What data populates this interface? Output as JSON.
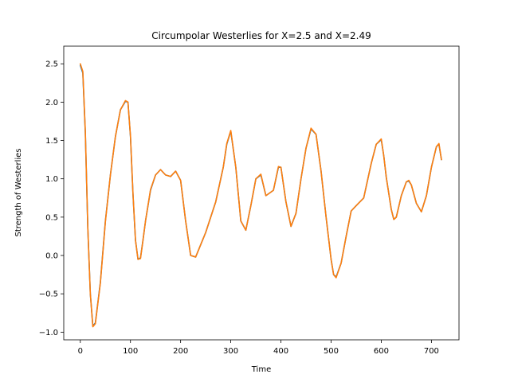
{
  "chart_data": {
    "type": "line",
    "title": "Circumpolar Westerlies for X=2.5 and X=2.49",
    "xlabel": "Time",
    "ylabel": "Strength of Westerlies",
    "xlim": [
      -33,
      755
    ],
    "ylim": [
      -1.1,
      2.73
    ],
    "xticks": [
      0,
      100,
      200,
      300,
      400,
      500,
      600,
      700
    ],
    "yticks": [
      -1.0,
      -0.5,
      0.0,
      0.5,
      1.0,
      1.5,
      2.0,
      2.5
    ],
    "grid": false,
    "series": [
      {
        "color": "#1f77b4",
        "x": [
          0,
          5,
          10,
          15,
          20,
          25,
          30,
          40,
          50,
          60,
          70,
          80,
          90,
          95,
          100,
          105,
          110,
          115,
          120,
          125,
          130,
          140,
          150,
          160,
          170,
          180,
          190,
          200,
          210,
          220,
          230,
          250,
          270,
          285,
          292,
          300,
          310,
          320,
          330,
          340,
          350,
          360,
          370,
          385,
          395,
          400,
          410,
          420,
          430,
          440,
          450,
          460,
          470,
          480,
          490,
          500,
          505,
          510,
          520,
          530,
          540,
          550,
          565,
          580,
          590,
          600,
          605,
          610,
          620,
          625,
          630,
          640,
          650,
          655,
          660,
          670,
          680,
          690,
          700,
          710,
          715,
          720
        ],
        "y": [
          2.48,
          2.38,
          1.6,
          0.35,
          -0.5,
          -0.92,
          -0.88,
          -0.35,
          0.45,
          1.05,
          1.55,
          1.9,
          2.01,
          2.0,
          1.55,
          0.8,
          0.2,
          -0.05,
          -0.03,
          0.2,
          0.45,
          0.85,
          1.05,
          1.12,
          1.05,
          1.03,
          1.1,
          0.98,
          0.45,
          0.0,
          -0.02,
          0.3,
          0.7,
          1.15,
          1.45,
          1.62,
          1.15,
          0.45,
          0.33,
          0.65,
          1.0,
          1.05,
          0.78,
          0.85,
          1.15,
          1.15,
          0.7,
          0.38,
          0.55,
          1.0,
          1.4,
          1.65,
          1.58,
          1.1,
          0.5,
          -0.05,
          -0.25,
          -0.28,
          -0.1,
          0.25,
          0.58,
          0.65,
          0.75,
          1.2,
          1.45,
          1.51,
          1.3,
          1.02,
          0.6,
          0.47,
          0.5,
          0.78,
          0.96,
          0.97,
          0.92,
          0.68,
          0.57,
          0.78,
          1.15,
          1.42,
          1.45,
          1.25
        ]
      },
      {
        "color": "#ff7f0e",
        "x": [
          0,
          5,
          10,
          15,
          20,
          25,
          30,
          40,
          50,
          60,
          70,
          80,
          90,
          95,
          100,
          105,
          110,
          115,
          120,
          125,
          130,
          140,
          150,
          160,
          170,
          180,
          190,
          200,
          210,
          220,
          230,
          250,
          270,
          285,
          292,
          300,
          310,
          320,
          330,
          340,
          350,
          360,
          370,
          385,
          395,
          400,
          410,
          420,
          430,
          440,
          450,
          460,
          470,
          480,
          490,
          500,
          505,
          510,
          520,
          530,
          540,
          550,
          565,
          580,
          590,
          600,
          605,
          610,
          620,
          625,
          630,
          640,
          650,
          655,
          660,
          670,
          680,
          690,
          700,
          710,
          715,
          720
        ],
        "y": [
          2.5,
          2.4,
          1.62,
          0.36,
          -0.5,
          -0.93,
          -0.89,
          -0.36,
          0.44,
          1.05,
          1.55,
          1.9,
          2.02,
          2.0,
          1.56,
          0.81,
          0.2,
          -0.05,
          -0.04,
          0.2,
          0.45,
          0.86,
          1.05,
          1.12,
          1.05,
          1.03,
          1.1,
          0.98,
          0.45,
          0.0,
          -0.02,
          0.3,
          0.7,
          1.15,
          1.46,
          1.63,
          1.15,
          0.45,
          0.33,
          0.65,
          1.0,
          1.06,
          0.78,
          0.85,
          1.16,
          1.15,
          0.7,
          0.38,
          0.55,
          1.0,
          1.4,
          1.66,
          1.58,
          1.1,
          0.5,
          -0.05,
          -0.25,
          -0.29,
          -0.1,
          0.25,
          0.58,
          0.65,
          0.75,
          1.2,
          1.45,
          1.52,
          1.3,
          1.02,
          0.6,
          0.47,
          0.5,
          0.78,
          0.96,
          0.98,
          0.92,
          0.68,
          0.57,
          0.78,
          1.15,
          1.42,
          1.46,
          1.25
        ]
      }
    ]
  }
}
